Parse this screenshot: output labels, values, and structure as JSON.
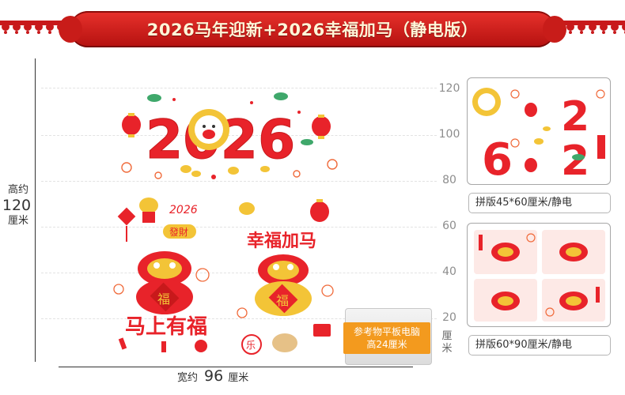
{
  "banner": {
    "title": "2026马年迎新+2026幸福加马（静电版）"
  },
  "dimensions": {
    "height_prefix": "高约",
    "height_value": "120",
    "height_unit": "厘米",
    "width_prefix": "宽约",
    "width_value": "96",
    "width_unit": "厘米"
  },
  "scale": {
    "ticks": [
      "120",
      "100",
      "80",
      "60",
      "40",
      "20"
    ],
    "unit": "厘米"
  },
  "artwork": {
    "year_text": "2026",
    "couplet_left": "马上有福",
    "couplet_right": "幸福加马",
    "small_banner": "發財",
    "fu_char": "福",
    "le_char": "乐"
  },
  "reference": {
    "line1": "参考物平板电脑",
    "line2": "高24厘米"
  },
  "panels": {
    "top_caption": "拼版45*60厘米/静电",
    "bottom_caption": "拼版60*90厘米/静电"
  },
  "colors": {
    "banner_red": "#c8191b",
    "number_red": "#e8232a",
    "gold": "#f3c437",
    "orange": "#f39a1e"
  }
}
